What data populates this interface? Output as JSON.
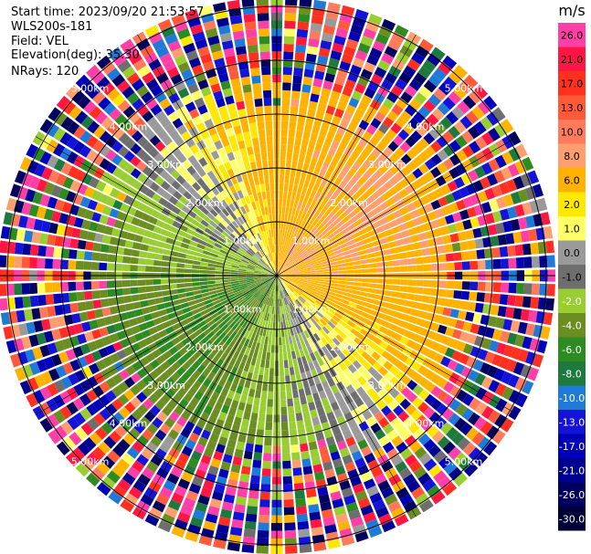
{
  "header": {
    "start_time": "Start time: 2023/09/20 21:53:57",
    "instrument": "WLS200s-181",
    "field": "Field: VEL",
    "elevation": "Elevation(deg): 35.30",
    "nrays": "NRays: 120"
  },
  "chart_data": {
    "type": "heatmap",
    "projection": "polar PPI",
    "nrays": 120,
    "range_rings_km": [
      1.0,
      2.0,
      3.0,
      4.0,
      5.0
    ],
    "ring_labels": [
      "1.00km",
      "2.00km",
      "3.00km",
      "4.00km",
      "5.00km"
    ],
    "colorbar": {
      "unit": "m/s",
      "ticks": [
        "26.0",
        "21.0",
        "17.0",
        "13.0",
        "10.0",
        "8.0",
        "6.0",
        "2.0",
        "1.0",
        "0.0",
        "-1.0",
        "-2.0",
        "-4.0",
        "-6.0",
        "-8.0",
        "-10.0",
        "-13.0",
        "-17.0",
        "-21.0",
        "-26.0",
        "-30.0"
      ],
      "colors": [
        "#ff3fa8",
        "#ff1744",
        "#ff3020",
        "#ff5a3a",
        "#ff7b5c",
        "#ff9e6e",
        "#ffb300",
        "#ffe800",
        "#ffff66",
        "#9a9a9a",
        "#6e6e6e",
        "#9acd32",
        "#6b8e23",
        "#2e8b22",
        "#1e7a3c",
        "#1e7ad6",
        "#1414d6",
        "#0000b8",
        "#000090",
        "#00005e",
        "#000038"
      ]
    },
    "colormap": {
      "bins": [
        26,
        21,
        17,
        13,
        10,
        8,
        6,
        2,
        1,
        0,
        -1,
        -2,
        -4,
        -6,
        -8,
        -10,
        -13,
        -17,
        -21,
        -26,
        -30
      ],
      "near_range_description": "positive velocities (yellow/orange) to the north-east, negative (green) to the south"
    }
  }
}
